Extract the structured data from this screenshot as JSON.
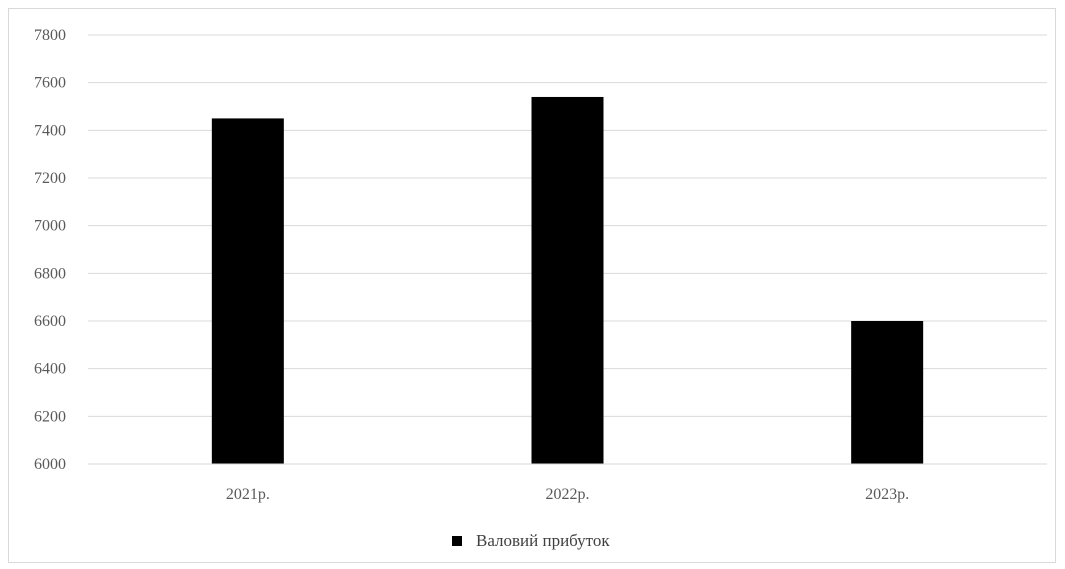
{
  "chart_data": {
    "type": "bar",
    "categories": [
      "2021р.",
      "2022р.",
      "2023р."
    ],
    "series": [
      {
        "name": "Валовий прибуток",
        "values": [
          7450,
          7540,
          6600
        ],
        "color": "#000000"
      }
    ],
    "ylim": [
      6000,
      7800
    ],
    "yticks": [
      6000,
      6200,
      6400,
      6600,
      6800,
      7000,
      7200,
      7400,
      7600,
      7800
    ],
    "grid": true,
    "legend_position": "bottom"
  }
}
